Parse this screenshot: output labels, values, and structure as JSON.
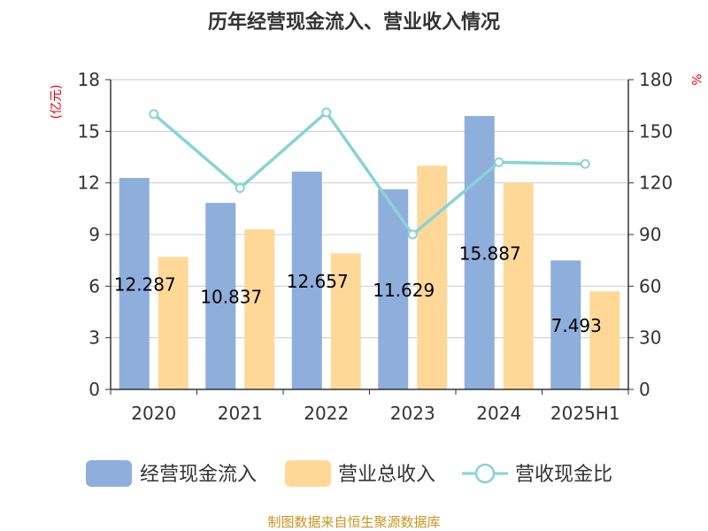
{
  "title": "历年经营现金流入、营业收入情况",
  "source": "制图数据来自恒生聚源数据库",
  "colors": {
    "cash_inflow": "#8eaedc",
    "revenue": "#ffd898",
    "ratio": "#88d3d8"
  },
  "chart_data": {
    "type": "bar",
    "categories": [
      "2020",
      "2021",
      "2022",
      "2023",
      "2024",
      "2025H1"
    ],
    "series": [
      {
        "name": "经营现金流入",
        "type": "bar",
        "axis": "left",
        "values": [
          12.287,
          10.837,
          12.657,
          11.629,
          15.887,
          7.493
        ],
        "labels": [
          "12.287",
          "10.837",
          "12.657",
          "11.629",
          "15.887",
          "7.493"
        ]
      },
      {
        "name": "营业总收入",
        "type": "bar",
        "axis": "left",
        "values": [
          7.7,
          9.3,
          7.9,
          13.0,
          12.0,
          5.7
        ]
      },
      {
        "name": "营收现金比",
        "type": "line",
        "axis": "right",
        "values": [
          160,
          117,
          161,
          90,
          132,
          131
        ]
      }
    ],
    "y_left": {
      "unit": "(亿元)",
      "min": 0,
      "max": 18,
      "ticks": [
        "0",
        "3",
        "6",
        "9",
        "12",
        "15",
        "18"
      ]
    },
    "y_right": {
      "unit": "%",
      "min": 0,
      "max": 180,
      "ticks": [
        "0",
        "30",
        "60",
        "90",
        "120",
        "150",
        "180"
      ]
    },
    "grid": true,
    "legend_position": "bottom"
  }
}
